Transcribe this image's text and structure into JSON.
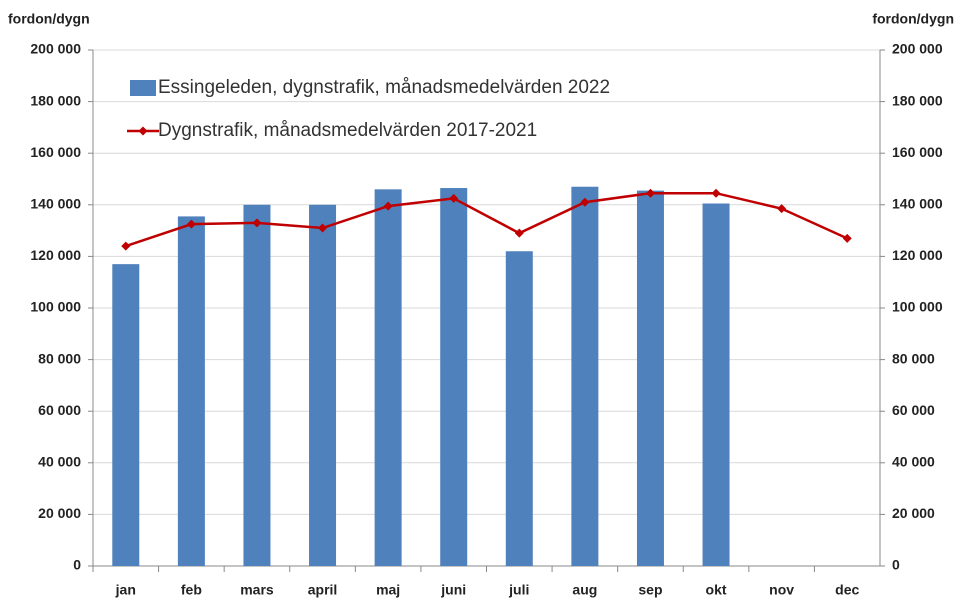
{
  "chart_data": {
    "type": "bar-line",
    "y_axis_label": "fordon/dygn",
    "y2_axis_label": "fordon/dygn",
    "categories": [
      "jan",
      "feb",
      "mars",
      "april",
      "maj",
      "juni",
      "juli",
      "aug",
      "sep",
      "okt",
      "nov",
      "dec"
    ],
    "series": [
      {
        "name": "Essingeleden, dygnstrafik, månadsmedelvärden 2022",
        "type": "bar",
        "color": "#4f81bd",
        "values": [
          117000,
          135500,
          140000,
          140000,
          146000,
          146500,
          122000,
          147000,
          145500,
          140500,
          null,
          null
        ]
      },
      {
        "name": "Dygnstrafik, månadsmedelvärden 2017-2021",
        "type": "line",
        "axis": "y2",
        "color": "#c00000",
        "values": [
          124000,
          132500,
          133000,
          131000,
          139500,
          142500,
          129000,
          141000,
          144500,
          144500,
          138500,
          127000
        ]
      }
    ],
    "ylim": [
      0,
      200000
    ],
    "yticks": [
      0,
      {
        "value": 20000,
        "label": "20 000"
      },
      {
        "value": 40000,
        "label": "40 000"
      },
      {
        "value": 60000,
        "label": "60 000"
      },
      {
        "value": 80000,
        "label": "80 000"
      },
      {
        "value": 100000,
        "label": "100 000"
      },
      {
        "value": 120000,
        "label": "120 000"
      },
      {
        "value": 140000,
        "label": "140 000"
      },
      {
        "value": 160000,
        "label": "160 000"
      },
      {
        "value": 180000,
        "label": "180 000"
      },
      {
        "value": 200000,
        "label": "200 000"
      }
    ],
    "y2lim": [
      0,
      200000
    ],
    "y2ticks": [
      0,
      {
        "value": 20000,
        "label": "20 000"
      },
      {
        "value": 40000,
        "label": "40 000"
      },
      {
        "value": 60000,
        "label": "60 000"
      },
      {
        "value": 80000,
        "label": "80 000"
      },
      {
        "value": 100000,
        "label": "100 000"
      },
      {
        "value": 120000,
        "label": "120 000"
      },
      {
        "value": 140000,
        "label": "140 000"
      },
      {
        "value": 160000,
        "label": "160 000"
      },
      {
        "value": 180000,
        "label": "180 000"
      },
      {
        "value": 200000,
        "label": "200 000"
      }
    ],
    "grid": true,
    "legend": "top-left"
  }
}
